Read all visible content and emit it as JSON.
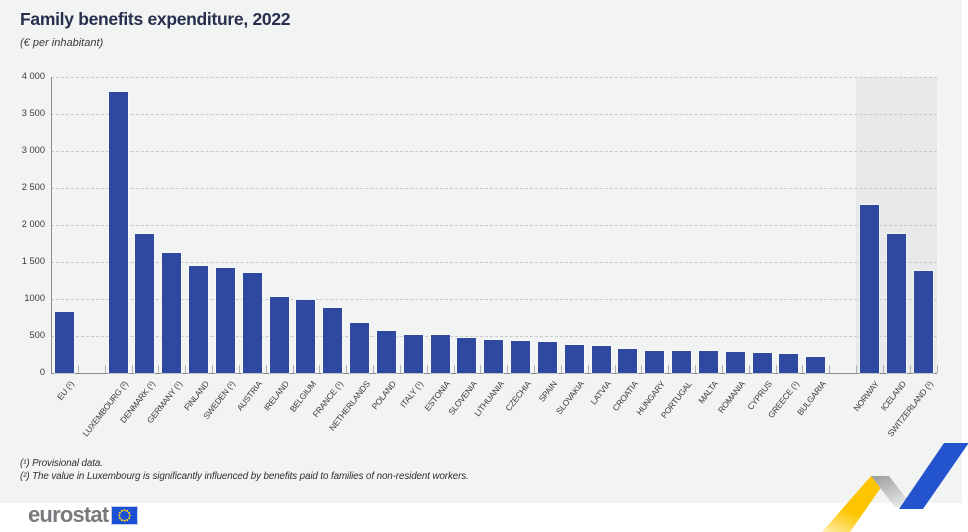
{
  "title": "Family benefits expenditure, 2022",
  "subtitle": "(€ per inhabitant)",
  "footnotes": [
    "(¹) Provisional data.",
    "(²) The value in Luxembourg is significantly influenced by benefits paid to families of non-resident workers."
  ],
  "logo": {
    "text": "eurostat",
    "flag_icon": "eu-flag-icon"
  },
  "colors": {
    "background": "#f2f3f3",
    "bar_blue": "#2d4aa0",
    "highlight_band": "#e8e9ea",
    "grid": "#c7c9cb",
    "axis": "#8c8c8c",
    "title_navy": "#262f4d",
    "logo_grey": "#797a7d",
    "flag_blue": "#1b50d4",
    "star_yellow": "#ffd617",
    "ribbon_yellow": "#fdc500",
    "ribbon_blue": "#2353cd",
    "ribbon_grey": "#a8aaac"
  },
  "chart_data": {
    "type": "bar",
    "title": "Family benefits expenditure, 2022",
    "ylabel": "",
    "xlabel": "",
    "unit": "€ per inhabitant",
    "ylim": [
      0,
      4000
    ],
    "ytick_step": 500,
    "ytick_labels": [
      "0",
      "500",
      "1000",
      "1 500",
      "2 000",
      "2 500",
      "3 000",
      "3 500",
      "4 000"
    ],
    "grid": "horizontal dashed",
    "legend": "none",
    "gap_after_indices": [
      0,
      27
    ],
    "highlight_band_categories": [
      "NORWAY",
      "ICELAND",
      "SWITZERLAND (¹)"
    ],
    "highlight_band_start_index": 28,
    "categories": [
      {
        "label": "EU (¹)",
        "value": 830
      },
      {
        "label": "LUXEMBOURG (²)",
        "value": 3795
      },
      {
        "label": "DENMARK (¹)",
        "value": 1880
      },
      {
        "label": "GERMANY (¹)",
        "value": 1615
      },
      {
        "label": "FINLAND",
        "value": 1445
      },
      {
        "label": "SWEDEN (¹)",
        "value": 1415
      },
      {
        "label": "AUSTRIA",
        "value": 1345
      },
      {
        "label": "IRELAND",
        "value": 1030
      },
      {
        "label": "BELGIUM",
        "value": 985
      },
      {
        "label": "FRANCE (¹)",
        "value": 875
      },
      {
        "label": "NETHERLANDS",
        "value": 670
      },
      {
        "label": "POLAND",
        "value": 565
      },
      {
        "label": "ITALY (¹)",
        "value": 520
      },
      {
        "label": "ESTONIA",
        "value": 508
      },
      {
        "label": "SLOVENIA",
        "value": 474
      },
      {
        "label": "LITHUANIA",
        "value": 448
      },
      {
        "label": "CZECHIA",
        "value": 437
      },
      {
        "label": "SPAIN",
        "value": 420
      },
      {
        "label": "SLOVAKIA",
        "value": 383
      },
      {
        "label": "LATVIA",
        "value": 365
      },
      {
        "label": "CROATIA",
        "value": 320
      },
      {
        "label": "HUNGARY",
        "value": 302
      },
      {
        "label": "PORTUGAL",
        "value": 293
      },
      {
        "label": "MALTA",
        "value": 291
      },
      {
        "label": "ROMANIA",
        "value": 280
      },
      {
        "label": "CYPRUS",
        "value": 273
      },
      {
        "label": "GREECE (¹)",
        "value": 262
      },
      {
        "label": "BULGARIA",
        "value": 212
      },
      {
        "label": "NORWAY",
        "value": 2268
      },
      {
        "label": "ICELAND",
        "value": 1872
      },
      {
        "label": "SWITZERLAND (¹)",
        "value": 1378
      }
    ]
  }
}
